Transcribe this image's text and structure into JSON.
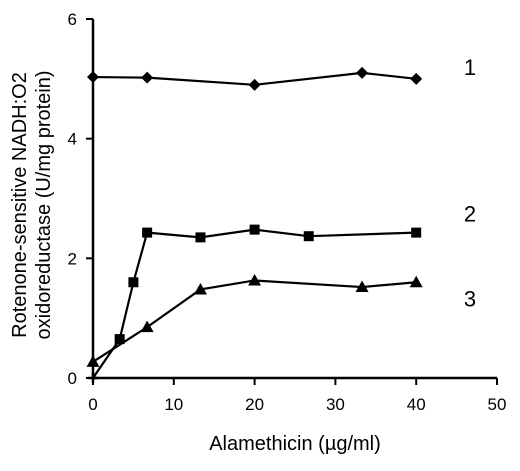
{
  "chart_data": {
    "type": "line",
    "xlabel": "Alamethicin (µg/ml)",
    "ylabel_lines": [
      "Rotenone-sensitive NADH:O2",
      "oxidoreductase (U/mg protein)"
    ],
    "xlim": [
      0,
      50
    ],
    "ylim": [
      0,
      6
    ],
    "x_ticks": [
      "0",
      "10",
      "20",
      "30",
      "40",
      "50"
    ],
    "y_ticks": [
      "0",
      "2",
      "4",
      "6"
    ],
    "grid": false,
    "series": [
      {
        "name": "1",
        "marker": "diamond",
        "points": [
          [
            0,
            5.03
          ],
          [
            6.7,
            5.02
          ],
          [
            20,
            4.9
          ],
          [
            33.3,
            5.1
          ],
          [
            40,
            5.0
          ]
        ]
      },
      {
        "name": "2",
        "marker": "square",
        "points": [
          [
            0,
            0.0
          ],
          [
            3.3,
            0.65
          ],
          [
            5,
            1.6
          ],
          [
            6.7,
            2.43
          ],
          [
            13.3,
            2.35
          ],
          [
            20,
            2.48
          ],
          [
            26.7,
            2.37
          ],
          [
            40,
            2.43
          ]
        ]
      },
      {
        "name": "3",
        "marker": "triangle",
        "points": [
          [
            0,
            0.27
          ],
          [
            6.7,
            0.85
          ],
          [
            13.3,
            1.48
          ],
          [
            20,
            1.63
          ],
          [
            33.3,
            1.52
          ],
          [
            40,
            1.6
          ]
        ]
      }
    ]
  }
}
